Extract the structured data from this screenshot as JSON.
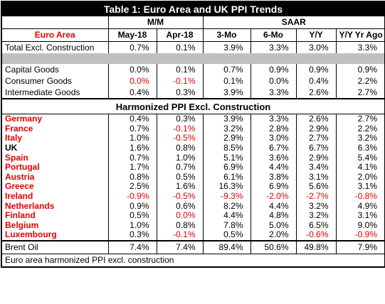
{
  "title": "Table 1: Euro Area and UK PPI Trends",
  "group_headers": [
    "M/M",
    "SAAR"
  ],
  "columns": [
    "Euro Area",
    "May-18",
    "Apr-18",
    "3-Mo",
    "6-Mo",
    "Y/Y",
    "Y/Y Yr Ago"
  ],
  "summary_rows": [
    [
      "Total Excl. Construction",
      "0.7%",
      "0.1%",
      "3.9%",
      "3.3%",
      "3.0%",
      "3.3%"
    ]
  ],
  "goods_rows": [
    [
      "Capital Goods",
      "0.0%",
      "0.1%",
      "0.7%",
      "0.9%",
      "0.9%",
      "0.9%"
    ],
    [
      "Consumer Goods",
      "0.0%",
      "-0.1%",
      "0.1%",
      "0.0%",
      "0.4%",
      "2.2%"
    ],
    [
      "Intermediate Goods",
      "0.4%",
      "0.3%",
      "3.9%",
      "3.3%",
      "2.6%",
      "2.7%"
    ]
  ],
  "section": "Harmonized PPI Excl. Construction",
  "country_rows": [
    [
      "Germany",
      "0.4%",
      "0.3%",
      "3.9%",
      "3.3%",
      "2.6%",
      "2.7%"
    ],
    [
      "France",
      "0.7%",
      "-0.1%",
      "3.2%",
      "2.8%",
      "2.9%",
      "2.2%"
    ],
    [
      "Italy",
      "1.0%",
      "-0.5%",
      "2.9%",
      "3.0%",
      "2.7%",
      "3.2%"
    ],
    [
      "UK",
      "1.6%",
      "0.8%",
      "8.5%",
      "6.7%",
      "6.7%",
      "6.3%"
    ],
    [
      "Spain",
      "0.7%",
      "1.0%",
      "5.1%",
      "3.6%",
      "2.9%",
      "5.4%"
    ],
    [
      "Portugal",
      "1.7%",
      "0.7%",
      "6.9%",
      "4.4%",
      "3.4%",
      "4.1%"
    ],
    [
      "Austria",
      "0.8%",
      "0.5%",
      "6.1%",
      "3.8%",
      "3.1%",
      "2.0%"
    ],
    [
      "Greece",
      "2.5%",
      "1.6%",
      "16.3%",
      "6.9%",
      "5.6%",
      "3.1%"
    ],
    [
      "Ireland",
      "-0.9%",
      "-0.5%",
      "-9.3%",
      "-2.0%",
      "-2.7%",
      "-0.8%"
    ],
    [
      "Netherlands",
      "0.9%",
      "0.6%",
      "8.2%",
      "4.4%",
      "3.2%",
      "4.9%"
    ],
    [
      "Finland",
      "0.5%",
      "0.0%",
      "4.4%",
      "4.8%",
      "3.2%",
      "3.1%"
    ],
    [
      "Belgium",
      "1.0%",
      "0.8%",
      "7.8%",
      "5.0%",
      "6.5%",
      "9.0%"
    ],
    [
      "Luxembourg",
      "0.3%",
      "-0.1%",
      "0.5%",
      "2.0%",
      "-0.6%",
      "-0.9%"
    ]
  ],
  "brent_row": [
    "Brent Oil",
    "7.4%",
    "7.4%",
    "89.4%",
    "50.6%",
    "49.8%",
    "7.9%"
  ],
  "footnote": "Euro area harmonized PPI excl. construction"
}
